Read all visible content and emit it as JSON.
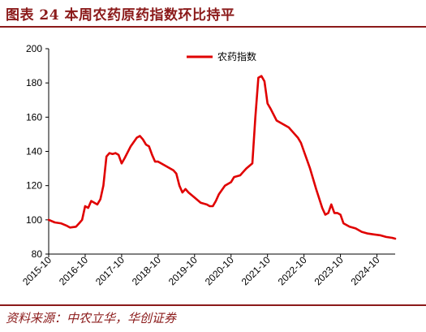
{
  "figure_title": "图表  24    本周农药原药指数环比持平",
  "source_text": "资料来源：中农立华，华创证券",
  "colors": {
    "line": "#e00000",
    "title": "#8b1a1a",
    "axis": "#000000"
  },
  "chart_data": {
    "type": "line",
    "title": "",
    "xlabel": "",
    "ylabel": "",
    "ylim": [
      80,
      200
    ],
    "y_ticks": [
      80,
      100,
      120,
      140,
      160,
      180,
      200
    ],
    "x_range": [
      "2015-10",
      "2025-04"
    ],
    "x_ticks": [
      "2015-10",
      "2016-10",
      "2017-10",
      "2018-10",
      "2019-10",
      "2020-10",
      "2021-10",
      "2022-10",
      "2023-10",
      "2024-10"
    ],
    "grid": false,
    "legend_position": "top-center",
    "series": [
      {
        "name": "农药指数",
        "points": [
          [
            "2015-10",
            100
          ],
          [
            "2015-12",
            98.5
          ],
          [
            "2016-02",
            98
          ],
          [
            "2016-04",
            96.5
          ],
          [
            "2016-05",
            95.5
          ],
          [
            "2016-07",
            96
          ],
          [
            "2016-08",
            98
          ],
          [
            "2016-09",
            100
          ],
          [
            "2016-10",
            108
          ],
          [
            "2016-11",
            107
          ],
          [
            "2016-12",
            111
          ],
          [
            "2017-01",
            110
          ],
          [
            "2017-02",
            109
          ],
          [
            "2017-03",
            112
          ],
          [
            "2017-04",
            120
          ],
          [
            "2017-05",
            137
          ],
          [
            "2017-06",
            139
          ],
          [
            "2017-07",
            138.5
          ],
          [
            "2017-08",
            139
          ],
          [
            "2017-09",
            138
          ],
          [
            "2017-10",
            133
          ],
          [
            "2017-11",
            136
          ],
          [
            "2018-01",
            143
          ],
          [
            "2018-03",
            148
          ],
          [
            "2018-04",
            149
          ],
          [
            "2018-05",
            147
          ],
          [
            "2018-06",
            144
          ],
          [
            "2018-07",
            143
          ],
          [
            "2018-08",
            138
          ],
          [
            "2018-09",
            134
          ],
          [
            "2018-10",
            134
          ],
          [
            "2018-11",
            133
          ],
          [
            "2019-01",
            131
          ],
          [
            "2019-03",
            129
          ],
          [
            "2019-04",
            127
          ],
          [
            "2019-05",
            120
          ],
          [
            "2019-06",
            116
          ],
          [
            "2019-07",
            118
          ],
          [
            "2019-08",
            116
          ],
          [
            "2019-10",
            113
          ],
          [
            "2019-12",
            110
          ],
          [
            "2020-02",
            109
          ],
          [
            "2020-03",
            108
          ],
          [
            "2020-04",
            108
          ],
          [
            "2020-05",
            111
          ],
          [
            "2020-06",
            115
          ],
          [
            "2020-08",
            120
          ],
          [
            "2020-10",
            122
          ],
          [
            "2020-11",
            125
          ],
          [
            "2021-01",
            126
          ],
          [
            "2021-02",
            128
          ],
          [
            "2021-03",
            130
          ],
          [
            "2021-05",
            133
          ],
          [
            "2021-06",
            160
          ],
          [
            "2021-07",
            183
          ],
          [
            "2021-08",
            184
          ],
          [
            "2021-09",
            181
          ],
          [
            "2021-10",
            168
          ],
          [
            "2021-11",
            165
          ],
          [
            "2022-01",
            158
          ],
          [
            "2022-03",
            156
          ],
          [
            "2022-05",
            154
          ],
          [
            "2022-06",
            152
          ],
          [
            "2022-08",
            148
          ],
          [
            "2022-09",
            145
          ],
          [
            "2022-10",
            140
          ],
          [
            "2022-12",
            130
          ],
          [
            "2023-02",
            118
          ],
          [
            "2023-04",
            107
          ],
          [
            "2023-05",
            103
          ],
          [
            "2023-06",
            104
          ],
          [
            "2023-07",
            109
          ],
          [
            "2023-08",
            104
          ],
          [
            "2023-09",
            104
          ],
          [
            "2023-10",
            103
          ],
          [
            "2023-11",
            98
          ],
          [
            "2024-01",
            96
          ],
          [
            "2024-03",
            95
          ],
          [
            "2024-05",
            93
          ],
          [
            "2024-07",
            92
          ],
          [
            "2024-09",
            91.5
          ],
          [
            "2024-11",
            91
          ],
          [
            "2025-01",
            90
          ],
          [
            "2025-03",
            89.5
          ],
          [
            "2025-04",
            89
          ]
        ]
      }
    ]
  }
}
